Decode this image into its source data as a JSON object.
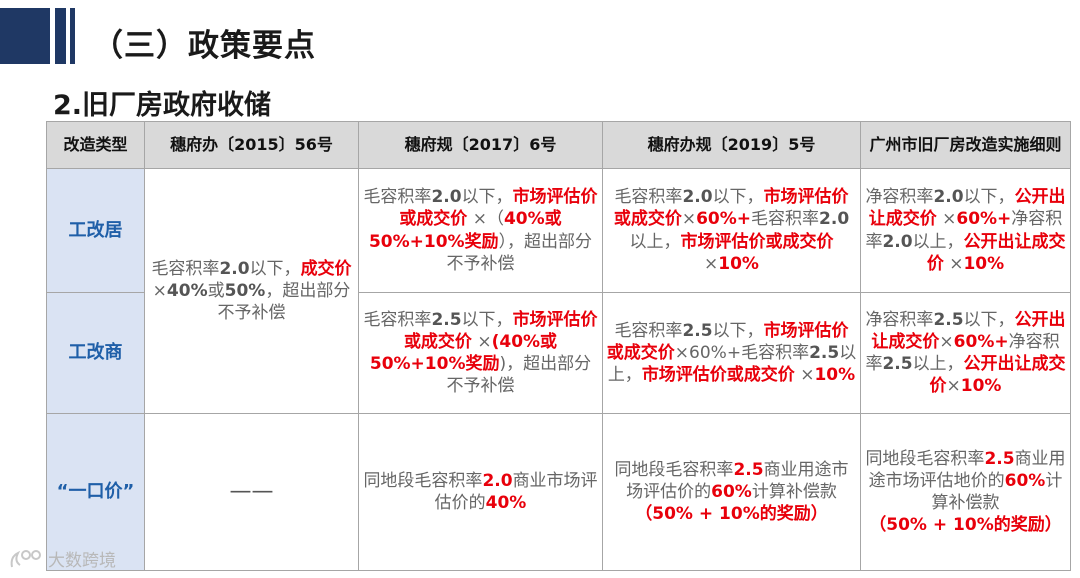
{
  "header": {
    "section_title": "（三）政策要点",
    "subtitle": "2.旧厂房政府收储"
  },
  "table": {
    "headers": [
      "改造类型",
      "穗府办〔2015〕56号",
      "穗府规〔2017〕6号",
      "穗府办规〔2019〕5号",
      "广州市旧厂房改造实施细则"
    ],
    "rows": [
      {
        "type": "工改居",
        "col2017": [
          {
            "t": "毛容积率",
            "s": "n"
          },
          {
            "t": "2.0",
            "s": "b"
          },
          {
            "t": "以下，",
            "s": "n"
          },
          {
            "t": "市场评估价或成交价",
            "s": "r"
          },
          {
            "t": " ×（",
            "s": "n"
          },
          {
            "t": "40%或50%+10%奖励",
            "s": "r"
          },
          {
            "t": "），超出部分不予补偿",
            "s": "n"
          }
        ],
        "col2019": [
          {
            "t": "毛容积率",
            "s": "n"
          },
          {
            "t": "2.0",
            "s": "b"
          },
          {
            "t": "以下，",
            "s": "n"
          },
          {
            "t": "市场评估价或成交价",
            "s": "r"
          },
          {
            "t": "×",
            "s": "n"
          },
          {
            "t": "60%+",
            "s": "r"
          },
          {
            "t": "毛容积率",
            "s": "n"
          },
          {
            "t": "2.0",
            "s": "b"
          },
          {
            "t": "以上，",
            "s": "n"
          },
          {
            "t": "市场评估价或成交价",
            "s": "r"
          },
          {
            "t": " ×",
            "s": "n"
          },
          {
            "t": "10%",
            "s": "r"
          }
        ],
        "colRules": [
          {
            "t": "净容积率",
            "s": "n"
          },
          {
            "t": "2.0",
            "s": "b"
          },
          {
            "t": "以下，",
            "s": "n"
          },
          {
            "t": "公开出让成交价",
            "s": "r"
          },
          {
            "t": " ×",
            "s": "n"
          },
          {
            "t": "60%+",
            "s": "r"
          },
          {
            "t": "净容积率",
            "s": "n"
          },
          {
            "t": "2.0",
            "s": "b"
          },
          {
            "t": "以上，",
            "s": "n"
          },
          {
            "t": "公开出让成交价",
            "s": "r"
          },
          {
            "t": " ×",
            "s": "n"
          },
          {
            "t": "10%",
            "s": "r"
          }
        ]
      },
      {
        "type": "工改商",
        "col2017": [
          {
            "t": "毛容积率",
            "s": "n"
          },
          {
            "t": "2.5",
            "s": "b"
          },
          {
            "t": "以下，",
            "s": "n"
          },
          {
            "t": "市场评估价或成交价",
            "s": "r"
          },
          {
            "t": " ×",
            "s": "n"
          },
          {
            "t": "(40%或50%+10%奖励",
            "s": "r"
          },
          {
            "t": ")，超出部分不予补偿",
            "s": "n"
          }
        ],
        "col2019": [
          {
            "t": "毛容积率",
            "s": "n"
          },
          {
            "t": "2.5",
            "s": "b"
          },
          {
            "t": "以下，",
            "s": "n"
          },
          {
            "t": "市场评估价或成交价",
            "s": "r"
          },
          {
            "t": "×60%+毛容积率",
            "s": "n"
          },
          {
            "t": "2.5",
            "s": "b"
          },
          {
            "t": "以上，",
            "s": "n"
          },
          {
            "t": "市场评估价或成交价",
            "s": "r"
          },
          {
            "t": " ×",
            "s": "n"
          },
          {
            "t": "10%",
            "s": "r"
          }
        ],
        "colRules": [
          {
            "t": "净容积率",
            "s": "n"
          },
          {
            "t": "2.5",
            "s": "b"
          },
          {
            "t": "以下，",
            "s": "n"
          },
          {
            "t": "公开出让成交价",
            "s": "r"
          },
          {
            "t": "×",
            "s": "n"
          },
          {
            "t": "60%+",
            "s": "r"
          },
          {
            "t": "净容积率",
            "s": "n"
          },
          {
            "t": "2.5",
            "s": "b"
          },
          {
            "t": "以上，",
            "s": "n"
          },
          {
            "t": "公开出让成交价",
            "s": "r"
          },
          {
            "t": "×",
            "s": "n"
          },
          {
            "t": "10%",
            "s": "r"
          }
        ]
      },
      {
        "type": "“一口价”",
        "col2015": "——",
        "col2017": [
          {
            "t": "同地段毛容积率",
            "s": "n"
          },
          {
            "t": "2.0",
            "s": "r"
          },
          {
            "t": "商业市场评估价的",
            "s": "n"
          },
          {
            "t": "40%",
            "s": "r"
          }
        ],
        "col2019": [
          {
            "t": "同地段毛容积率",
            "s": "n"
          },
          {
            "t": "2.5",
            "s": "r"
          },
          {
            "t": "商业用途市场评估价的",
            "s": "n"
          },
          {
            "t": "60%",
            "s": "r"
          },
          {
            "t": "计算补偿款",
            "s": "n"
          },
          {
            "t": "\n（50% + 10%的奖励）",
            "s": "r"
          }
        ],
        "colRules": [
          {
            "t": "同地段毛容积率",
            "s": "n"
          },
          {
            "t": "2.5",
            "s": "r"
          },
          {
            "t": "商业用途市场评估地价的",
            "s": "n"
          },
          {
            "t": "60%",
            "s": "r"
          },
          {
            "t": "计算补偿款",
            "s": "n"
          },
          {
            "t": "\n（50% + 10%的奖励）",
            "s": "r"
          }
        ]
      }
    ],
    "merged2015": [
      {
        "t": "毛容积率",
        "s": "n"
      },
      {
        "t": "2.0",
        "s": "b"
      },
      {
        "t": "以下，",
        "s": "n"
      },
      {
        "t": "成交价",
        "s": "r"
      },
      {
        "t": " ×",
        "s": "n"
      },
      {
        "t": "40%",
        "s": "b"
      },
      {
        "t": "或",
        "s": "n"
      },
      {
        "t": "50%",
        "s": "b"
      },
      {
        "t": "，超出部分不予补偿",
        "s": "n"
      }
    ]
  },
  "watermark": {
    "text": "大数跨境"
  },
  "colors": {
    "accent_bar": "#1f3864",
    "emphasis_red": "#e8000b",
    "row_header_blue": "#1f5fa8",
    "row_header_bg": "#dae3f3",
    "header_bg": "#d9d9d9"
  }
}
